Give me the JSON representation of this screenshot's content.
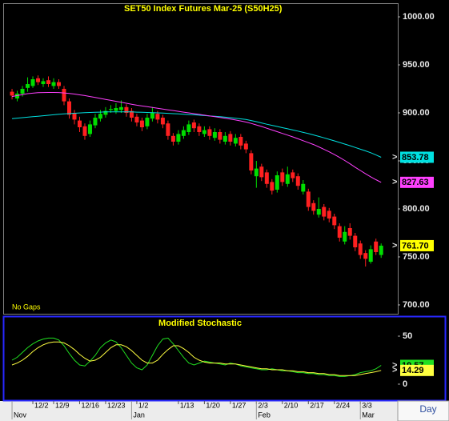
{
  "chart_data": [
    {
      "type": "candlestick",
      "title": "SET50  Index  Futures  Mar-25  (S50H25)",
      "note": "No Gaps",
      "xlim": [
        -1.7,
        74.2
      ],
      "xticks": [
        {
          "value": 4,
          "label": "12/2"
        },
        {
          "value": 8,
          "label": "12/9"
        },
        {
          "value": 13,
          "label": "12/16"
        },
        {
          "value": 18,
          "label": "12/23"
        },
        {
          "value": 24,
          "label": "1/2"
        },
        {
          "value": 32,
          "label": "1/13"
        },
        {
          "value": 37,
          "label": "1/20"
        },
        {
          "value": 42,
          "label": "1/27"
        },
        {
          "value": 47,
          "label": "2/3"
        },
        {
          "value": 52,
          "label": "2/10"
        },
        {
          "value": 57,
          "label": "2/17"
        },
        {
          "value": 62,
          "label": "2/24"
        },
        {
          "value": 67,
          "label": "3/3"
        }
      ],
      "months": [
        {
          "value": 0,
          "label": "Nov"
        },
        {
          "value": 23,
          "label": "Jan"
        },
        {
          "value": 47,
          "label": "Feb"
        },
        {
          "value": 67,
          "label": "Mar"
        }
      ],
      "period": "Day",
      "ylim": [
        690.8,
        1014.2
      ],
      "yticks": [
        {
          "value": 700,
          "label": "700.00"
        },
        {
          "value": 750,
          "label": "750.00"
        },
        {
          "value": 800,
          "label": "800.00"
        },
        {
          "value": 850,
          "label": "850.00"
        },
        {
          "value": 900,
          "label": "900.00"
        },
        {
          "value": 950,
          "label": "950.00"
        },
        {
          "value": 1000,
          "label": "1000.00"
        }
      ],
      "up_color": "#00dd00",
      "down_color": "#ff2020",
      "candles": {
        "open": [
          922,
          915,
          920,
          926,
          928,
          936,
          930,
          934,
          928,
          932,
          925,
          912,
          900,
          892,
          886,
          878,
          887,
          894,
          898,
          903,
          902,
          903,
          906,
          902,
          896,
          892,
          886,
          894,
          899,
          895,
          889,
          876,
          870,
          876,
          880,
          890,
          886,
          878,
          883,
          874,
          880,
          870,
          878,
          868,
          875,
          868,
          858,
          834,
          844,
          838,
          828,
          820,
          838,
          826,
          838,
          834,
          818,
          818,
          806,
          794,
          802,
          798,
          792,
          782,
          766,
          780,
          772,
          764,
          754,
          745,
          766,
          752
        ],
        "high": [
          925,
          923,
          928,
          937,
          938,
          939,
          936,
          938,
          936,
          935,
          928,
          915,
          903,
          896,
          889,
          892,
          899,
          903,
          906,
          908,
          910,
          913,
          909,
          905,
          899,
          895,
          899,
          906,
          902,
          898,
          892,
          879,
          882,
          886,
          892,
          893,
          889,
          886,
          886,
          884,
          883,
          880,
          881,
          878,
          878,
          871,
          861,
          850,
          847,
          841,
          831,
          839,
          842,
          844,
          841,
          837,
          830,
          821,
          809,
          812,
          805,
          801,
          795,
          785,
          782,
          785,
          775,
          767,
          757,
          762,
          769,
          764
        ],
        "low": [
          914,
          912,
          917,
          922,
          926,
          929,
          927,
          927,
          925,
          925,
          908,
          894,
          888,
          880,
          872,
          875,
          884,
          891,
          895,
          900,
          899,
          900,
          896,
          891,
          886,
          881,
          883,
          891,
          889,
          884,
          872,
          866,
          867,
          873,
          877,
          880,
          876,
          875,
          872,
          871,
          868,
          867,
          866,
          865,
          862,
          858,
          836,
          822,
          829,
          822,
          815,
          817,
          824,
          823,
          828,
          820,
          815,
          798,
          794,
          791,
          788,
          786,
          779,
          766,
          763,
          768,
          756,
          748,
          740,
          743,
          752,
          749
        ],
        "close": [
          918,
          920,
          925,
          930,
          935,
          932,
          933,
          930,
          932,
          928,
          912,
          898,
          893,
          885,
          876,
          888,
          895,
          899,
          902,
          904,
          905,
          906,
          900,
          895,
          890,
          885,
          895,
          900,
          893,
          888,
          876,
          870,
          878,
          882,
          888,
          884,
          880,
          882,
          876,
          880,
          872,
          876,
          870,
          874,
          866,
          862,
          840,
          842,
          833,
          826,
          819,
          835,
          828,
          836,
          832,
          824,
          826,
          802,
          798,
          800,
          792,
          790,
          783,
          770,
          776,
          772,
          760,
          752,
          748,
          758,
          755,
          761.7
        ],
        "last_label": "761.70",
        "label_color": "#ffff00"
      },
      "series": [
        {
          "color": "#00e0e0",
          "last_label": "853.78",
          "values": [
            894,
            894.5,
            895,
            895.5,
            896,
            896.5,
            897,
            897.5,
            898,
            898.5,
            899,
            899.3,
            899.6,
            899.9,
            900.2,
            900.4,
            900.6,
            900.8,
            901,
            901,
            901,
            901,
            901,
            901,
            900.8,
            900.6,
            900.4,
            900.2,
            900,
            899.8,
            899.5,
            899.2,
            898.9,
            898.6,
            898.3,
            898,
            897.6,
            897.2,
            896.8,
            896.4,
            896,
            895.5,
            895,
            894.4,
            893.8,
            893.2,
            892,
            890.8,
            889.5,
            888.2,
            887,
            885.8,
            884.6,
            883.4,
            882.2,
            881,
            879.7,
            878.4,
            877,
            875.5,
            874,
            872.4,
            870.8,
            869.2,
            867.5,
            865.8,
            864,
            862.2,
            860.4,
            858.5,
            856.2,
            853.78
          ]
        },
        {
          "color": "#ff40ff",
          "last_label": "827.63",
          "values": [
            917,
            918,
            919,
            920,
            920.5,
            921,
            921.2,
            921.3,
            921.3,
            921.2,
            920.8,
            920.3,
            919.6,
            918.8,
            918,
            917,
            916,
            915,
            914,
            913,
            912,
            911,
            910,
            909,
            908,
            907.2,
            906.4,
            905.6,
            904.8,
            904,
            903.2,
            902.4,
            901.6,
            900.8,
            900,
            899.2,
            898.4,
            897.6,
            896.8,
            896,
            895.2,
            894.4,
            893.6,
            892.6,
            891.6,
            890.4,
            889,
            887.4,
            885.8,
            884,
            882.2,
            880.4,
            878.6,
            876.8,
            875,
            873,
            871,
            869,
            867,
            864.6,
            862,
            859.4,
            856.6,
            853.6,
            850.4,
            847,
            843.4,
            840,
            836.6,
            833.4,
            830.4,
            827.63
          ]
        }
      ]
    },
    {
      "type": "line",
      "title": "Modified  Stochastic",
      "xlim": [
        -1.7,
        74.2
      ],
      "ylim": [
        -16.7,
        70
      ],
      "yticks": [
        0,
        50
      ],
      "series": [
        {
          "color": "#20e020",
          "last_label": "19.57",
          "values": [
            25,
            28,
            33,
            38,
            42,
            45,
            47,
            48,
            48,
            46,
            40,
            32,
            25,
            20,
            19,
            24,
            30,
            38,
            43,
            46,
            44,
            38,
            30,
            22,
            17,
            15,
            20,
            30,
            40,
            47,
            48,
            42,
            35,
            28,
            22,
            20,
            22,
            24,
            23,
            22,
            21,
            20,
            22,
            21,
            19,
            18,
            17,
            16,
            15,
            15,
            16,
            15,
            14,
            14,
            13,
            12,
            12,
            11,
            11,
            10,
            10,
            9,
            9,
            8,
            8,
            9,
            10,
            12,
            13,
            14,
            16,
            19.57
          ]
        },
        {
          "color": "#ffff40",
          "last_label": "14.29",
          "values": [
            20,
            22,
            25,
            29,
            34,
            38,
            41,
            43,
            44,
            44,
            43,
            40,
            36,
            31,
            27,
            24,
            25,
            28,
            33,
            38,
            41,
            41,
            39,
            35,
            30,
            25,
            22,
            22,
            25,
            31,
            36,
            40,
            40,
            37,
            33,
            28,
            25,
            23,
            22,
            22,
            22,
            21,
            21,
            21,
            20,
            19,
            18,
            17,
            16,
            16,
            15,
            15,
            15,
            14,
            14,
            13,
            13,
            12,
            12,
            11,
            11,
            10,
            10,
            9,
            9,
            9,
            9,
            10,
            11,
            12,
            13,
            14.29
          ]
        }
      ]
    }
  ]
}
